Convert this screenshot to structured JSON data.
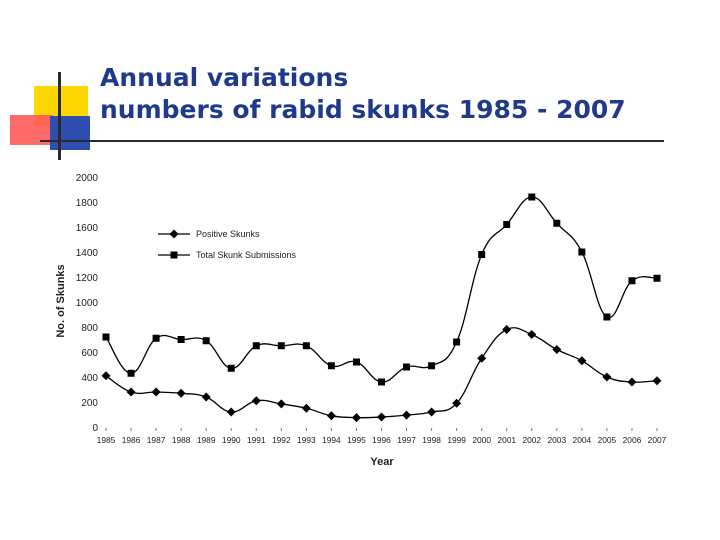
{
  "slide": {
    "title_line1": "Annual variations",
    "title_line2": "numbers of rabid skunks 1985 - 2007"
  },
  "colors": {
    "title": "#1f3a8a",
    "series": "#000000",
    "deco_yellow": "#ffd700",
    "deco_red": "#ff5a5a",
    "deco_blue": "#2f4fb0"
  },
  "chart_data": {
    "type": "line",
    "title": "",
    "xlabel": "Year",
    "ylabel": "No. of Skunks",
    "ylim": [
      0,
      2000
    ],
    "yticks": [
      0,
      200,
      400,
      600,
      800,
      1000,
      1200,
      1400,
      1600,
      1800,
      2000
    ],
    "grid": false,
    "legend_position": "top-left",
    "categories": [
      "1985",
      "1986",
      "1987",
      "1988",
      "1989",
      "1990",
      "1991",
      "1992",
      "1993",
      "1994",
      "1995",
      "1996",
      "1997",
      "1998",
      "1999",
      "2000",
      "2001",
      "2002",
      "2003",
      "2004",
      "2005",
      "2006",
      "2007"
    ],
    "series": [
      {
        "name": "Positive Skunks",
        "marker": "diamond",
        "values": [
          410,
          280,
          280,
          270,
          240,
          120,
          210,
          185,
          150,
          90,
          75,
          80,
          95,
          120,
          190,
          550,
          780,
          740,
          620,
          530,
          400,
          360,
          370
        ]
      },
      {
        "name": "Total Skunk Submissions",
        "marker": "square",
        "values": [
          720,
          430,
          710,
          700,
          690,
          470,
          650,
          650,
          650,
          490,
          520,
          360,
          480,
          490,
          680,
          1380,
          1620,
          1840,
          1630,
          1400,
          880,
          1170,
          1190
        ]
      }
    ]
  }
}
